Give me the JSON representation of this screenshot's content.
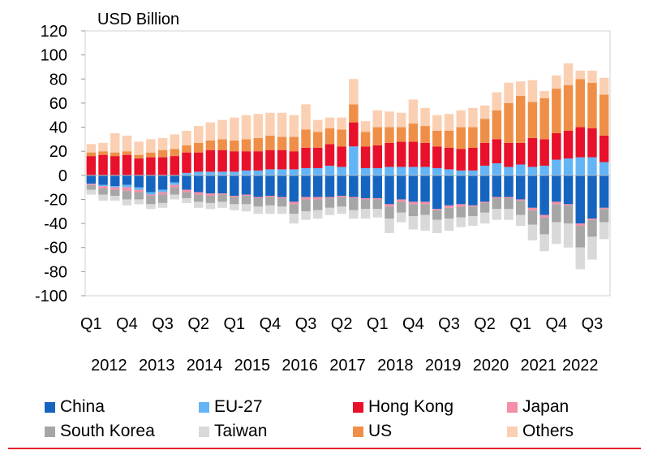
{
  "chart_data": {
    "type": "stacked-bar",
    "ylabel": "USD Billion",
    "ylim": [
      -100,
      120
    ],
    "yticks": [
      120,
      100,
      80,
      60,
      40,
      20,
      0,
      -20,
      -40,
      -60,
      -80,
      -100
    ],
    "quarter_tick_labels": [
      {
        "index": 0,
        "label": "Q1"
      },
      {
        "index": 3,
        "label": "Q4"
      },
      {
        "index": 6,
        "label": "Q3"
      },
      {
        "index": 9,
        "label": "Q2"
      },
      {
        "index": 12,
        "label": "Q1"
      },
      {
        "index": 15,
        "label": "Q4"
      },
      {
        "index": 18,
        "label": "Q3"
      },
      {
        "index": 21,
        "label": "Q2"
      },
      {
        "index": 24,
        "label": "Q1"
      },
      {
        "index": 27,
        "label": "Q4"
      },
      {
        "index": 30,
        "label": "Q3"
      },
      {
        "index": 33,
        "label": "Q2"
      },
      {
        "index": 36,
        "label": "Q1"
      },
      {
        "index": 39,
        "label": "Q4"
      },
      {
        "index": 42,
        "label": "Q3"
      }
    ],
    "year_labels": [
      {
        "index": 1.5,
        "label": "2012"
      },
      {
        "index": 5.5,
        "label": "2013"
      },
      {
        "index": 9.5,
        "label": "2014"
      },
      {
        "index": 13.5,
        "label": "2015"
      },
      {
        "index": 17.5,
        "label": "2016"
      },
      {
        "index": 21.5,
        "label": "2017"
      },
      {
        "index": 25.5,
        "label": "2018"
      },
      {
        "index": 29.5,
        "label": "2019"
      },
      {
        "index": 33.5,
        "label": "2020"
      },
      {
        "index": 37.5,
        "label": "2021"
      },
      {
        "index": 41,
        "label": "2022"
      }
    ],
    "categories": [
      "2012Q1",
      "2012Q2",
      "2012Q3",
      "2012Q4",
      "2013Q1",
      "2013Q2",
      "2013Q3",
      "2013Q4",
      "2014Q1",
      "2014Q2",
      "2014Q3",
      "2014Q4",
      "2015Q1",
      "2015Q2",
      "2015Q3",
      "2015Q4",
      "2016Q1",
      "2016Q2",
      "2016Q3",
      "2016Q4",
      "2017Q1",
      "2017Q2",
      "2017Q3",
      "2017Q4",
      "2018Q1",
      "2018Q2",
      "2018Q3",
      "2018Q4",
      "2019Q1",
      "2019Q2",
      "2019Q3",
      "2019Q4",
      "2020Q1",
      "2020Q2",
      "2020Q3",
      "2020Q4",
      "2021Q1",
      "2021Q2",
      "2021Q3",
      "2021Q4",
      "2022Q1",
      "2022Q2",
      "2022Q3",
      "2022Q4"
    ],
    "series": [
      {
        "name": "China",
        "color": "#1565c0",
        "values": [
          -7,
          -8,
          -9,
          -8,
          -10,
          -14,
          -12,
          -6,
          -12,
          -14,
          -15,
          -15,
          -17,
          -16,
          -18,
          -17,
          -18,
          -22,
          -18,
          -18,
          -18,
          -17,
          -18,
          -19,
          -19,
          -24,
          -20,
          -22,
          -22,
          -28,
          -25,
          -24,
          -25,
          -22,
          -18,
          -18,
          -20,
          -27,
          -33,
          -22,
          -24,
          -40,
          -36,
          -27
        ]
      },
      {
        "name": "EU-27",
        "color": "#64b5f6",
        "values": [
          0,
          -1,
          -1,
          -2,
          -2,
          -2,
          -2,
          -2,
          2,
          3,
          3,
          3,
          3,
          4,
          4,
          5,
          5,
          5,
          6,
          6,
          8,
          7,
          24,
          6,
          6,
          7,
          7,
          7,
          7,
          6,
          5,
          4,
          4,
          8,
          10,
          7,
          9,
          7,
          8,
          13,
          14,
          15,
          15,
          11
        ]
      },
      {
        "name": "Hong Kong",
        "color": "#e8102a",
        "values": [
          16,
          17,
          16,
          17,
          14,
          15,
          15,
          16,
          17,
          16,
          18,
          18,
          17,
          16,
          16,
          16,
          16,
          15,
          17,
          17,
          18,
          17,
          20,
          18,
          19,
          20,
          21,
          21,
          20,
          18,
          18,
          18,
          19,
          19,
          20,
          20,
          18,
          24,
          22,
          22,
          23,
          25,
          24,
          22
        ]
      },
      {
        "name": "Japan",
        "color": "#f48fa7",
        "values": [
          -1,
          -2,
          -2,
          -3,
          -2,
          -1,
          -2,
          -2,
          -2,
          -2,
          -2,
          -1,
          -1,
          -1,
          -1,
          -1,
          -1,
          -2,
          -2,
          -2,
          -1,
          -1,
          -1,
          -1,
          -1,
          -2,
          -2,
          -2,
          -2,
          -1,
          -2,
          -2,
          -1,
          -1,
          -1,
          -1,
          -1,
          -2,
          -2,
          -2,
          -1,
          -2,
          -1,
          -1
        ]
      },
      {
        "name": "South Korea",
        "color": "#a6a6a6",
        "values": [
          -4,
          -5,
          -5,
          -7,
          -6,
          -7,
          -7,
          -6,
          -5,
          -6,
          -6,
          -6,
          -6,
          -7,
          -7,
          -7,
          -7,
          -8,
          -10,
          -9,
          -8,
          -8,
          -10,
          -8,
          -8,
          -10,
          -9,
          -10,
          -9,
          -8,
          -9,
          -9,
          -8,
          -8,
          -9,
          -9,
          -12,
          -12,
          -14,
          -15,
          -15,
          -18,
          -14,
          -11
        ]
      },
      {
        "name": "Taiwan",
        "color": "#d9d9d9",
        "values": [
          -4,
          -5,
          -4,
          -5,
          -4,
          -4,
          -4,
          -4,
          -4,
          -5,
          -5,
          -5,
          -5,
          -6,
          -6,
          -7,
          -6,
          -8,
          -7,
          -7,
          -6,
          -6,
          -7,
          -8,
          -7,
          -12,
          -8,
          -11,
          -13,
          -11,
          -10,
          -8,
          -8,
          -9,
          -9,
          -9,
          -9,
          -13,
          -14,
          -18,
          -20,
          -18,
          -19,
          -14
        ]
      },
      {
        "name": "US",
        "color": "#ef8f47",
        "values": [
          3,
          3,
          3,
          3,
          3,
          4,
          6,
          6,
          6,
          8,
          8,
          9,
          9,
          10,
          11,
          12,
          11,
          12,
          15,
          13,
          13,
          14,
          15,
          12,
          15,
          13,
          12,
          15,
          14,
          13,
          14,
          18,
          17,
          20,
          24,
          33,
          39,
          30,
          34,
          37,
          38,
          40,
          38,
          34
        ]
      },
      {
        "name": "Others",
        "color": "#fbcfb2",
        "values": [
          7,
          7,
          16,
          13,
          11,
          11,
          10,
          12,
          12,
          14,
          15,
          16,
          19,
          20,
          20,
          19,
          20,
          18,
          21,
          10,
          9,
          10,
          21,
          9,
          14,
          13,
          12,
          20,
          15,
          13,
          14,
          14,
          16,
          11,
          15,
          17,
          12,
          18,
          6,
          11,
          18,
          7,
          10,
          14
        ]
      }
    ]
  }
}
